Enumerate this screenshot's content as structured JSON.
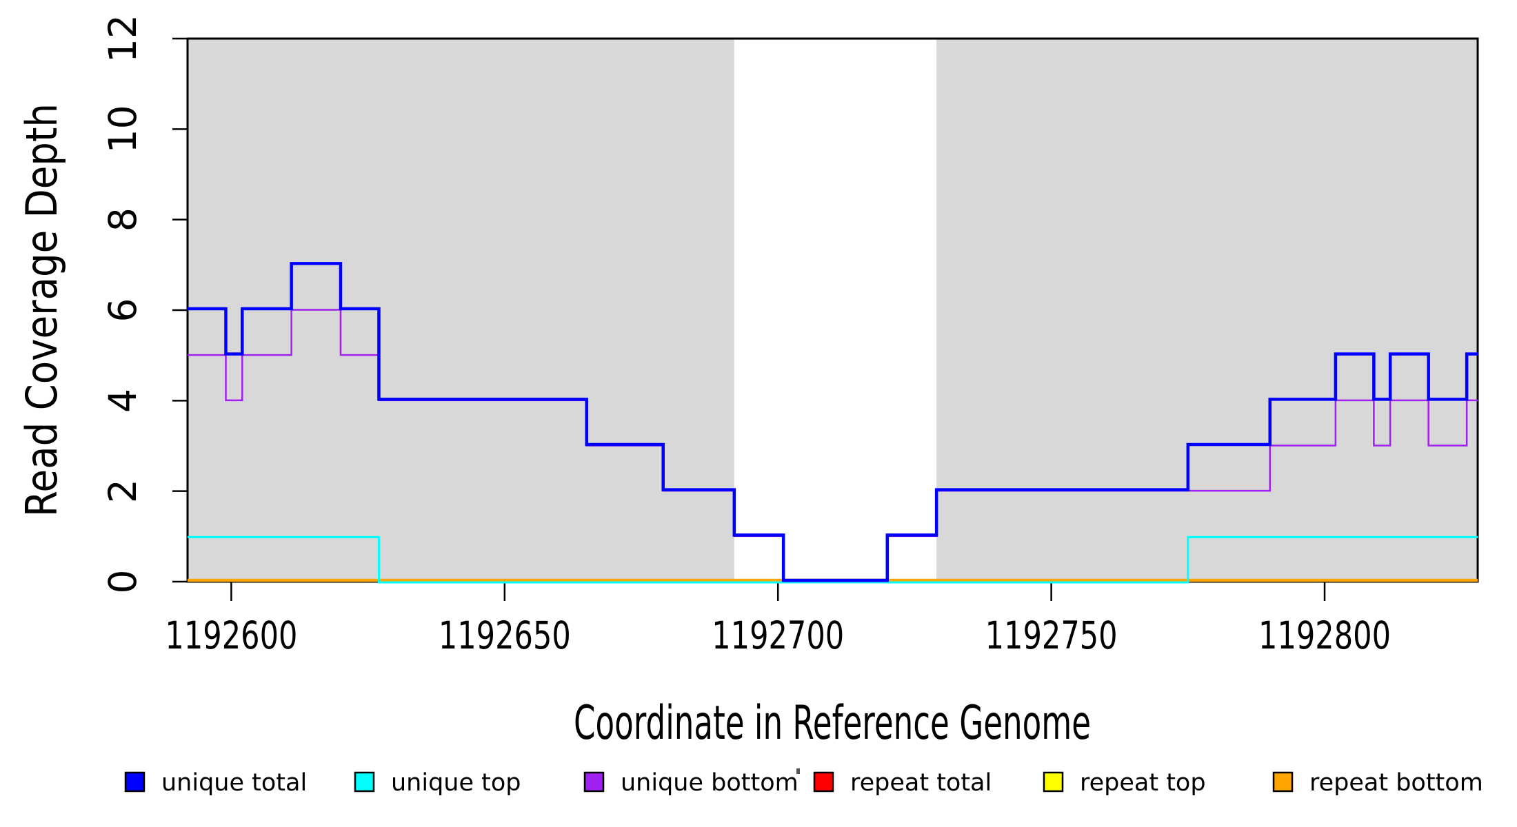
{
  "chart_data": {
    "type": "step-line",
    "title": "",
    "xlabel": "Coordinate in Reference Genome",
    "ylabel": "Read Coverage Depth",
    "xlim": [
      1192592,
      1192828
    ],
    "ylim": [
      0,
      12
    ],
    "xticks": [
      1192600,
      1192650,
      1192700,
      1192750,
      1192800
    ],
    "yticks": [
      0,
      2,
      4,
      6,
      8,
      10,
      12
    ],
    "grid": "off",
    "panel_background": "#FFFFFF",
    "shaded_regions": {
      "color": "#D8D8D8",
      "ranges": [
        [
          1192592,
          1192692
        ],
        [
          1192729,
          1192828
        ]
      ]
    },
    "series": [
      {
        "key": "repeat-total",
        "name": "repeat total",
        "color": "#FF0000",
        "points": [
          [
            1192592,
            0
          ],
          [
            1192828,
            0
          ]
        ]
      },
      {
        "key": "repeat-top",
        "name": "repeat top",
        "color": "#FFFF00",
        "points": [
          [
            1192592,
            0
          ],
          [
            1192828,
            0
          ]
        ]
      },
      {
        "key": "repeat-bottom",
        "name": "repeat bottom",
        "color": "#FFA500",
        "points": [
          [
            1192592,
            0
          ],
          [
            1192828,
            0
          ]
        ]
      },
      {
        "key": "unique-top",
        "name": "unique top",
        "color": "#00FFFF",
        "points": [
          [
            1192592,
            1
          ],
          [
            1192627,
            0
          ],
          [
            1192775,
            1
          ],
          [
            1192828,
            1
          ]
        ]
      },
      {
        "key": "unique-bottom",
        "name": "unique bottom",
        "color": "#A020F0",
        "points": [
          [
            1192592,
            5
          ],
          [
            1192599,
            4
          ],
          [
            1192602,
            5
          ],
          [
            1192611,
            6
          ],
          [
            1192620,
            5
          ],
          [
            1192627,
            4
          ],
          [
            1192665,
            3
          ],
          [
            1192679,
            2
          ],
          [
            1192692,
            1
          ],
          [
            1192701,
            0
          ],
          [
            1192720,
            1
          ],
          [
            1192729,
            2
          ],
          [
            1192790,
            3
          ],
          [
            1192802,
            4
          ],
          [
            1192809,
            3
          ],
          [
            1192812,
            4
          ],
          [
            1192819,
            3
          ],
          [
            1192826,
            4
          ],
          [
            1192828,
            4
          ]
        ]
      },
      {
        "key": "unique-total",
        "name": "unique total",
        "color": "#0000FF",
        "points": [
          [
            1192592,
            6
          ],
          [
            1192599,
            5
          ],
          [
            1192602,
            6
          ],
          [
            1192611,
            7
          ],
          [
            1192620,
            6
          ],
          [
            1192627,
            4
          ],
          [
            1192665,
            3
          ],
          [
            1192679,
            2
          ],
          [
            1192692,
            1
          ],
          [
            1192701,
            0
          ],
          [
            1192720,
            1
          ],
          [
            1192729,
            2
          ],
          [
            1192775,
            3
          ],
          [
            1192790,
            4
          ],
          [
            1192802,
            5
          ],
          [
            1192809,
            4
          ],
          [
            1192812,
            5
          ],
          [
            1192819,
            4
          ],
          [
            1192826,
            5
          ],
          [
            1192828,
            5
          ]
        ]
      }
    ],
    "legend": {
      "position": "bottom",
      "entries": [
        {
          "key": "unique-total",
          "label": "unique total",
          "color": "#0000FF"
        },
        {
          "key": "unique-top",
          "label": "unique top",
          "color": "#00FFFF"
        },
        {
          "key": "unique-bottom",
          "label": "unique bottom",
          "color": "#A020F0"
        },
        {
          "key": "repeat-total",
          "label": "repeat total",
          "color": "#FF0000"
        },
        {
          "key": "repeat-top",
          "label": "repeat top",
          "color": "#FFFF00"
        },
        {
          "key": "repeat-bottom",
          "label": "repeat bottom",
          "color": "#FFA500"
        }
      ]
    }
  }
}
